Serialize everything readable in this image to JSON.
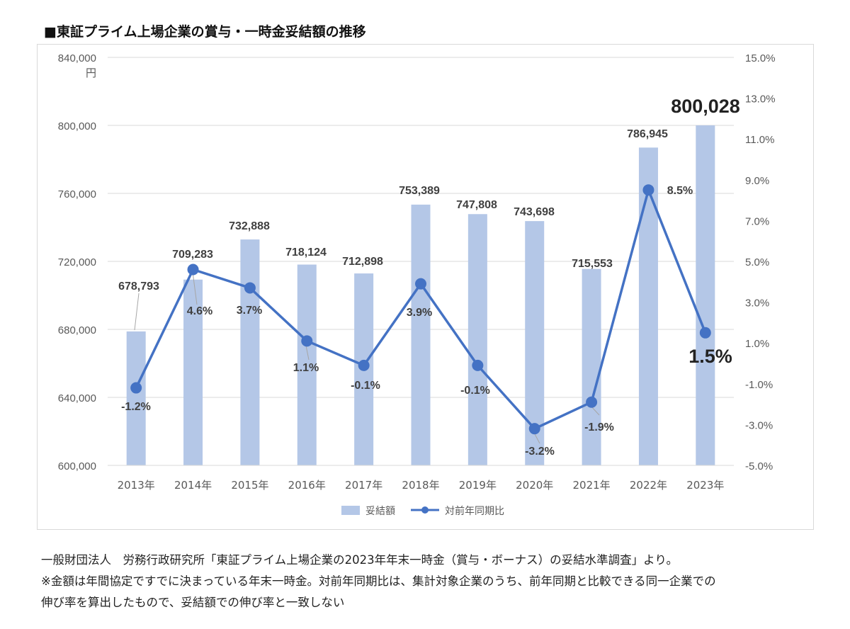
{
  "title": "■東証プライム上場企業の賞与・一時金妥結額の推移",
  "footnotes": [
    "一般財団法人　労務行政研究所「東証プライム上場企業の2023年年末一時金（賞与・ボーナス）の妥結水準調査」より。",
    "※金額は年間協定ですでに決まっている年末一時金。対前年同期比は、集計対象企業のうち、前年同期と比較できる同一企業での",
    "伸び率を算出したもので、妥結額での伸び率と一致しない"
  ],
  "colors": {
    "bar": "#b4c7e7",
    "line": "#4472c4",
    "grid": "#d9d9d9",
    "axis_text": "#595959"
  },
  "chart_data": {
    "type": "bar",
    "categories": [
      "2013年",
      "2014年",
      "2015年",
      "2016年",
      "2017年",
      "2018年",
      "2019年",
      "2020年",
      "2021年",
      "2022年",
      "2023年"
    ],
    "series": [
      {
        "name": "妥結額",
        "type": "bar",
        "axis": "left",
        "values": [
          678793,
          709283,
          732888,
          718124,
          712898,
          753389,
          747808,
          743698,
          715553,
          786945,
          800028
        ],
        "labels": [
          "678,793",
          "709,283",
          "732,888",
          "718,124",
          "712,898",
          "753,389",
          "747,808",
          "743,698",
          "715,553",
          "786,945",
          "800,028"
        ]
      },
      {
        "name": "対前年同期比",
        "type": "line",
        "axis": "right",
        "values": [
          -1.2,
          4.6,
          3.7,
          1.1,
          -0.1,
          3.9,
          -0.1,
          -3.2,
          -1.9,
          8.5,
          1.5
        ],
        "labels": [
          "-1.2%",
          "4.6%",
          "3.7%",
          "1.1%",
          "-0.1%",
          "3.9%",
          "-0.1%",
          "-3.2%",
          "-1.9%",
          "8.5%",
          "1.5%"
        ]
      }
    ],
    "y_left": {
      "ylim": [
        600000,
        840000
      ],
      "ticks": [
        "600,000",
        "640,000",
        "680,000",
        "720,000",
        "760,000",
        "800,000",
        "840,000"
      ],
      "unit": "円"
    },
    "y_right": {
      "ylim": [
        -5.0,
        15.0
      ],
      "ticks": [
        "-5.0%",
        "-3.0%",
        "-1.0%",
        "1.0%",
        "3.0%",
        "5.0%",
        "7.0%",
        "9.0%",
        "11.0%",
        "13.0%",
        "15.0%"
      ]
    },
    "grid": true,
    "legend": "bottom"
  }
}
